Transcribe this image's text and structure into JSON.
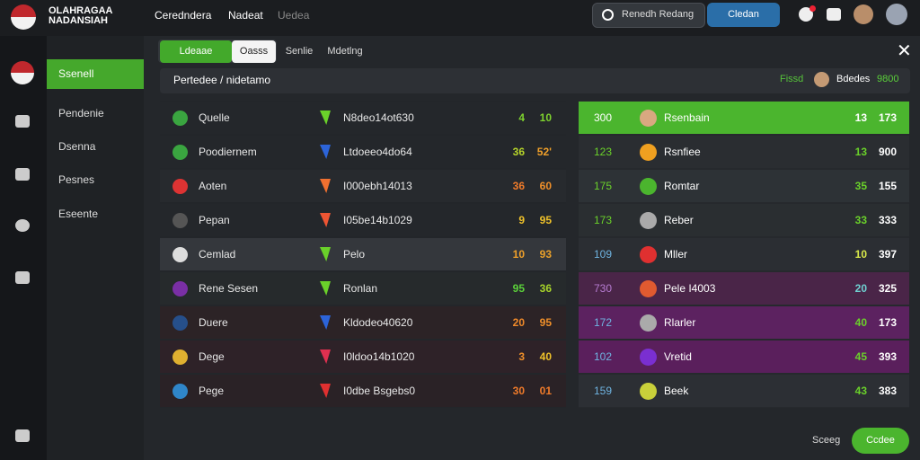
{
  "header": {
    "logo": [
      "OLAHRAGAA",
      "NADANSIAH"
    ],
    "nav": [
      "Ceredndera",
      "Nadeat",
      "Uedea"
    ],
    "search": "Renedh Redang",
    "button": "Cledan"
  },
  "sidebar": {
    "items": [
      "Ssenell",
      "Pendenie",
      "Dsenna",
      "Pesnes",
      "Eseente"
    ]
  },
  "panel": {
    "tabs": [
      "Ldeaae",
      "Oasss",
      "Senlie",
      "Mdetlng"
    ],
    "title": "Pertedee / nidetamo",
    "filter": "Fissd",
    "balance_label": "Bdedes",
    "balance": "9800"
  },
  "left_table": {
    "rows": [
      [
        "Quelle",
        "N8deo14ot630",
        "4",
        "10"
      ],
      [
        "Poodiernem",
        "Ltdoeeo4do64",
        "36",
        "52'"
      ],
      [
        "Aoten",
        "I000ebh14013",
        "36",
        "60"
      ],
      [
        "Pepan",
        "I05be14b1029",
        "9",
        "95"
      ],
      [
        "Cemlad",
        "Pelo",
        "10",
        "93"
      ],
      [
        "Rene Sesen",
        "Ronlan",
        "95",
        "36"
      ],
      [
        "Duere",
        "Kldodeo40620",
        "20",
        "95"
      ],
      [
        "Dege",
        "I0ldoo14b1020",
        "3",
        "40"
      ],
      [
        "Pege",
        "I0dbe Bsgebs0",
        "30",
        "01"
      ]
    ]
  },
  "right_table": {
    "rows": [
      [
        "300",
        "Rsenbain",
        "13",
        "173"
      ],
      [
        "123",
        "Rsnfiee",
        "13",
        "900"
      ],
      [
        "175",
        "Romtar",
        "35",
        "155"
      ],
      [
        "173",
        "Reber",
        "33",
        "333"
      ],
      [
        "109",
        "Mller",
        "10",
        "397"
      ],
      [
        "730",
        "Pele I4003",
        "20",
        "325"
      ],
      [
        "172",
        "Rlarler",
        "40",
        "173"
      ],
      [
        "102",
        "Vretid",
        "45",
        "393"
      ],
      [
        "159",
        "Beek",
        "43",
        "383"
      ]
    ]
  },
  "footer": {
    "link": "Sceeg",
    "button": "Ccdee"
  }
}
